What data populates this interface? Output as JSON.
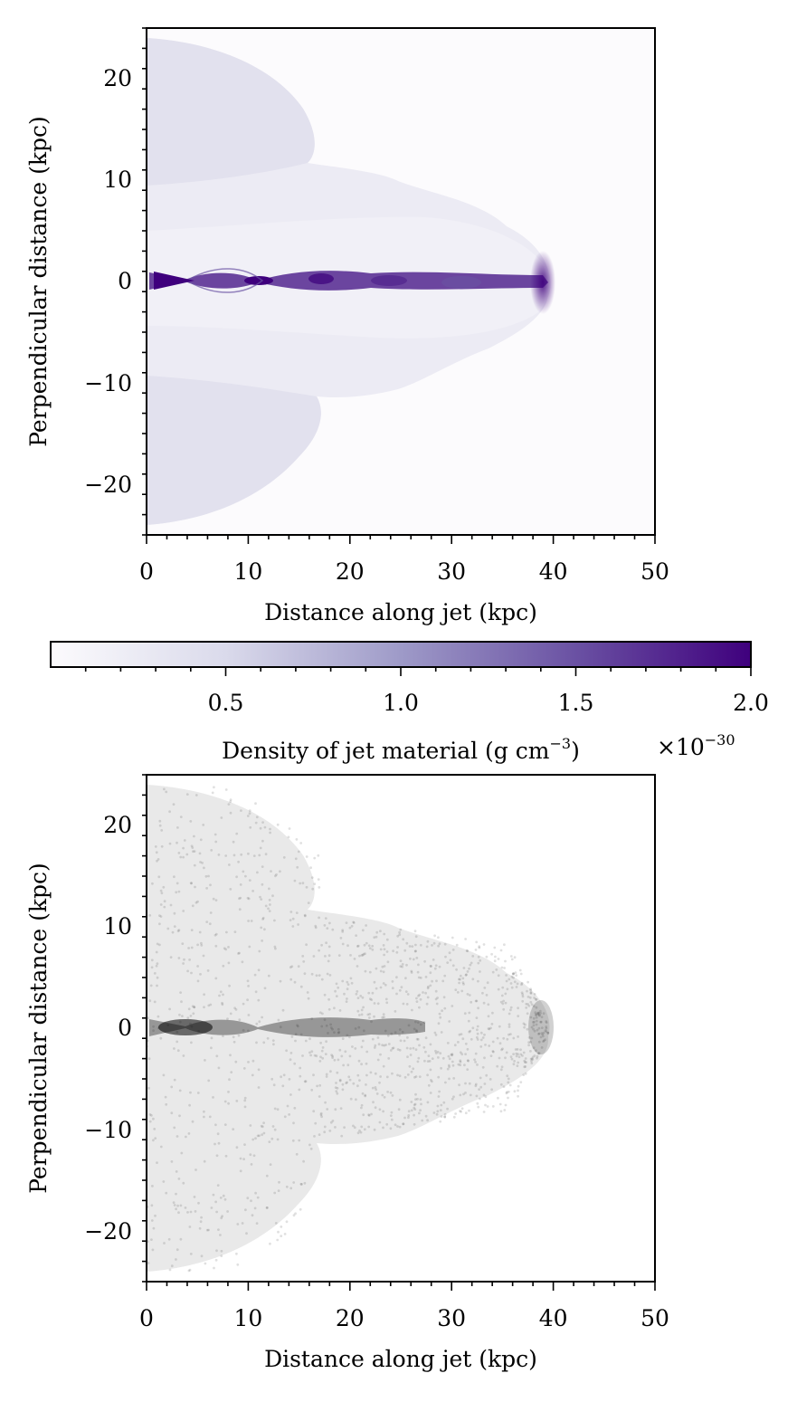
{
  "chart_data": [
    {
      "type": "heatmap",
      "title": "",
      "xlabel": "Distance along jet (kpc)",
      "ylabel": "Perpendicular distance (kpc)",
      "xlim": [
        0,
        50
      ],
      "ylim": [
        -25,
        25
      ],
      "xticks": [
        0,
        10,
        20,
        30,
        40,
        50
      ],
      "yticks": [
        -20,
        -10,
        0,
        10,
        20
      ],
      "colormap": "Purples",
      "features": {
        "jet_axis_y": 0,
        "jet_length": 39.5,
        "lobe_half_width": 24,
        "cocoon_start_x": 0
      },
      "colorbar": {
        "label": "Density of jet material (g cm",
        "label_exponent": "−3",
        "label_close": ")",
        "range": [
          0,
          2.0
        ],
        "ticks": [
          0.5,
          1.0,
          1.5,
          2.0
        ],
        "tick_labels": [
          "0.5",
          "1.0",
          "1.5",
          "2.0"
        ],
        "scale_base": "×10",
        "scale_exponent": "−30",
        "colors": [
          "#fcfbfd",
          "#3f007d"
        ]
      }
    },
    {
      "type": "scatter",
      "title": "",
      "xlabel": "Distance along jet (kpc)",
      "ylabel": "Perpendicular distance (kpc)",
      "xlim": [
        0,
        50
      ],
      "ylim": [
        -25,
        25
      ],
      "xticks": [
        0,
        10,
        20,
        30,
        40,
        50
      ],
      "yticks": [
        -20,
        -10,
        0,
        10,
        20
      ],
      "marker_color": "#000000",
      "features": {
        "jet_axis_y": 0,
        "jet_length": 39.5,
        "lobe_half_width": 24
      }
    }
  ],
  "tick_text": {
    "x": [
      "0",
      "10",
      "20",
      "30",
      "40",
      "50"
    ],
    "y": [
      "−20",
      "−10",
      "0",
      "10",
      "20"
    ]
  }
}
